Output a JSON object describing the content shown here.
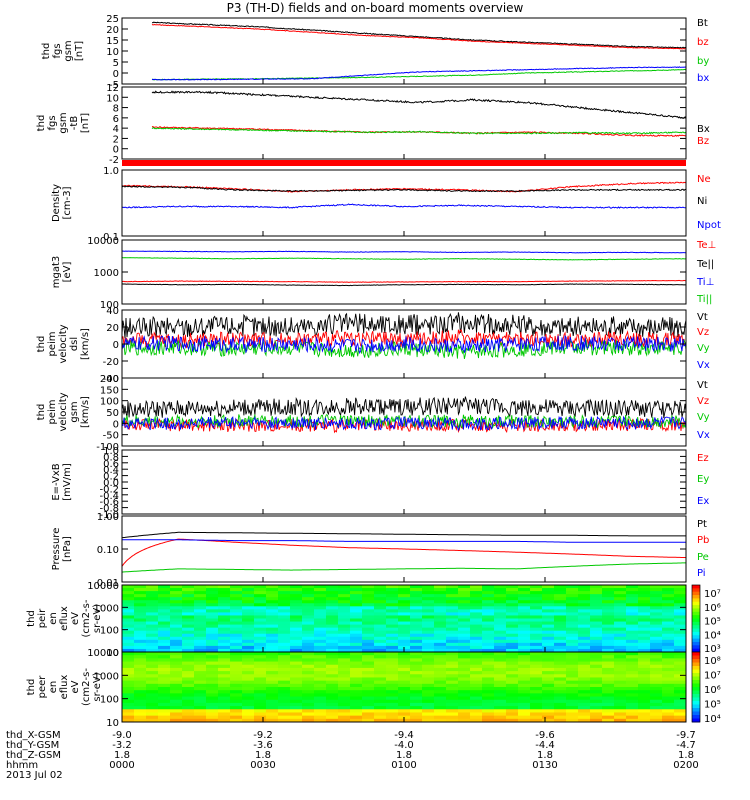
{
  "title": "P3 (TH-D) fields and on-board moments overview",
  "colors": {
    "black": "#000000",
    "red": "#ff0000",
    "green": "#00c800",
    "blue": "#0000ff"
  },
  "chart_data": [
    {
      "type": "line",
      "ylabel": [
        "thd",
        "fgs",
        "gsm",
        "[nT]"
      ],
      "ylim": [
        -5,
        25
      ],
      "yticks": [
        "25",
        "20",
        "15",
        "10",
        "5",
        "0",
        "-5"
      ],
      "series": [
        {
          "name": "Bt",
          "color": "black",
          "values": [
            23,
            22,
            21,
            19.5,
            18,
            16.5,
            15,
            14,
            13,
            12,
            11.5
          ]
        },
        {
          "name": "bz",
          "color": "red",
          "values": [
            22,
            21,
            20,
            18.5,
            17,
            16,
            14.5,
            13.5,
            12.5,
            11.5,
            11
          ]
        },
        {
          "name": "by",
          "color": "green",
          "values": [
            -3,
            -2.8,
            -2.6,
            -2.3,
            -2,
            -1.5,
            -1,
            0,
            0.5,
            1,
            1.5
          ]
        },
        {
          "name": "bx",
          "color": "blue",
          "values": [
            -3,
            -3,
            -2.8,
            -2.6,
            -1,
            0.5,
            1,
            1.5,
            2,
            2.5,
            2.7
          ]
        }
      ]
    },
    {
      "type": "line",
      "ylabel": [
        "thd",
        "fgs",
        "gsm",
        "-tB",
        "[nT]"
      ],
      "ylim": [
        -2,
        12
      ],
      "yticks": [
        "12",
        "10",
        "8",
        "6",
        "4",
        "2",
        "0",
        "-2"
      ],
      "series": [
        {
          "name": "Bx",
          "color": "black",
          "values": [
            11,
            11,
            10.5,
            10,
            9.5,
            9,
            9.5,
            9,
            8,
            7,
            6
          ]
        },
        {
          "name": "Bz",
          "color": "red",
          "values": [
            4.2,
            4,
            3.8,
            3.5,
            3.2,
            3.3,
            3,
            3.2,
            3,
            2.6,
            2.5
          ]
        },
        {
          "name": "",
          "color": "green",
          "values": [
            4,
            3.8,
            3.6,
            3.4,
            3.2,
            3.3,
            3,
            3,
            3.1,
            3,
            3.2
          ]
        }
      ]
    },
    {
      "type": "line",
      "scale": "log",
      "ylabel": [
        "Density",
        "[cm-3]"
      ],
      "ylim": [
        0.1,
        1.0
      ],
      "yticks": [
        "1.0",
        "0.1"
      ],
      "series": [
        {
          "name": "Ne",
          "color": "red",
          "values": [
            0.58,
            0.56,
            0.52,
            0.47,
            0.5,
            0.52,
            0.5,
            0.47,
            0.56,
            0.62,
            0.65
          ]
        },
        {
          "name": "Ni",
          "color": "black",
          "values": [
            0.56,
            0.55,
            0.5,
            0.48,
            0.49,
            0.5,
            0.48,
            0.48,
            0.5,
            0.5,
            0.5
          ]
        },
        {
          "name": "Npot",
          "color": "blue",
          "values": [
            0.27,
            0.28,
            0.28,
            0.27,
            0.3,
            0.28,
            0.29,
            0.28,
            0.27,
            0.27,
            0.27
          ]
        }
      ]
    },
    {
      "type": "line",
      "scale": "log",
      "ylabel": [
        "mgat3",
        "[eV]"
      ],
      "ylim": [
        100,
        10000
      ],
      "yticks": [
        "10000",
        "1000",
        "100"
      ],
      "series": [
        {
          "name": "Te⊥",
          "color": "red",
          "values": [
            500,
            520,
            510,
            500,
            480,
            490,
            500,
            500,
            520,
            530,
            540
          ]
        },
        {
          "name": "Te||",
          "color": "black",
          "values": [
            420,
            400,
            410,
            390,
            380,
            400,
            410,
            400,
            420,
            410,
            400
          ]
        },
        {
          "name": "Ti⊥",
          "color": "blue",
          "values": [
            4500,
            4400,
            4300,
            4400,
            4200,
            4300,
            4100,
            4200,
            4000,
            4100,
            4000
          ]
        },
        {
          "name": "Ti||",
          "color": "green",
          "values": [
            2800,
            2700,
            2600,
            2700,
            2600,
            2500,
            2600,
            2500,
            2400,
            2500,
            2600
          ]
        }
      ]
    },
    {
      "type": "line",
      "ylabel": [
        "thd",
        "peim",
        "velocity",
        "dsl",
        "[km/s]"
      ],
      "ylim": [
        -40,
        40
      ],
      "yticks": [
        "40",
        "20",
        "0",
        "-20",
        "-40"
      ],
      "series": [
        {
          "name": "Vt",
          "color": "black",
          "values": [
            18,
            20,
            22,
            20,
            24,
            22,
            25,
            22,
            20,
            21,
            20
          ]
        },
        {
          "name": "Vz",
          "color": "red",
          "values": [
            5,
            4,
            6,
            5,
            7,
            5,
            8,
            6,
            5,
            6,
            5
          ]
        },
        {
          "name": "Vy",
          "color": "green",
          "values": [
            -5,
            -4,
            -6,
            -5,
            -8,
            -6,
            -10,
            -6,
            -4,
            -5,
            -4
          ]
        },
        {
          "name": "Vx",
          "color": "blue",
          "values": [
            0,
            1,
            -1,
            0,
            -2,
            0,
            -3,
            0,
            1,
            0,
            0
          ]
        }
      ]
    },
    {
      "type": "line",
      "ylabel": [
        "thd",
        "peim",
        "velocity",
        "gsm",
        "[km/s]"
      ],
      "ylim": [
        -100,
        200
      ],
      "yticks": [
        "200",
        "150",
        "100",
        "50",
        "0",
        "-50",
        "-100"
      ],
      "series": [
        {
          "name": "Vt",
          "color": "black",
          "values": [
            60,
            65,
            70,
            70,
            75,
            72,
            80,
            70,
            65,
            65,
            60
          ]
        },
        {
          "name": "Vz",
          "color": "red",
          "values": [
            -5,
            -8,
            -10,
            -8,
            -12,
            -10,
            -8,
            -10,
            -8,
            -8,
            -6
          ]
        },
        {
          "name": "Vy",
          "color": "green",
          "values": [
            10,
            8,
            12,
            10,
            12,
            10,
            10,
            8,
            10,
            10,
            8
          ]
        },
        {
          "name": "Vx",
          "color": "blue",
          "values": [
            0,
            -2,
            2,
            0,
            -3,
            0,
            -2,
            0,
            2,
            0,
            0
          ]
        }
      ]
    },
    {
      "type": "line",
      "ylabel": [
        "E=-VxB",
        "[mV/m]"
      ],
      "ylim": [
        -1.0,
        1.0
      ],
      "yticks": [
        "1.0",
        "0.8",
        "0.6",
        "0.4",
        "0.2",
        "0.0",
        "-0.2",
        "-0.4",
        "-0.6",
        "-0.8",
        "-1.0"
      ],
      "series": [
        {
          "name": "Ez",
          "color": "red",
          "values": []
        },
        {
          "name": "Ey",
          "color": "green",
          "values": []
        },
        {
          "name": "Ex",
          "color": "blue",
          "values": []
        }
      ]
    },
    {
      "type": "line",
      "scale": "log",
      "ylabel": [
        "Pressure",
        "[nPa]"
      ],
      "ylim": [
        0.01,
        1.0
      ],
      "yticks": [
        "1.00",
        "0.10",
        "0.01"
      ],
      "series": [
        {
          "name": "Pt",
          "color": "black",
          "values": [
            0.22,
            0.32,
            0.31,
            0.3,
            0.29,
            0.28,
            0.27,
            0.26,
            0.26,
            0.25,
            0.25
          ]
        },
        {
          "name": "Pb",
          "color": "red",
          "values": [
            0.03,
            0.2,
            0.16,
            0.13,
            0.11,
            0.1,
            0.09,
            0.08,
            0.07,
            0.06,
            0.055
          ]
        },
        {
          "name": "Pe",
          "color": "green",
          "values": [
            0.02,
            0.025,
            0.024,
            0.023,
            0.024,
            0.025,
            0.026,
            0.025,
            0.03,
            0.035,
            0.038
          ]
        },
        {
          "name": "Pi",
          "color": "blue",
          "values": [
            0.19,
            0.19,
            0.18,
            0.18,
            0.17,
            0.17,
            0.17,
            0.17,
            0.16,
            0.16,
            0.16
          ]
        }
      ]
    },
    {
      "type": "heatmap",
      "ylabel": [
        "thd",
        "peir",
        "en",
        "eflux",
        "eV",
        "(cm2-s-",
        "sr-eV)"
      ],
      "ylim": [
        10,
        10000
      ],
      "yticks": [
        "10000",
        "1000",
        "100",
        "10"
      ],
      "colorbar_ticks": [
        "10⁷",
        "10⁶",
        "10⁵",
        "10⁴",
        "10³"
      ],
      "zlim": [
        1000,
        10000000
      ]
    },
    {
      "type": "heatmap",
      "ylabel": [
        "thd",
        "peer",
        "en",
        "eflux",
        "eV",
        "(cm2-s-",
        "sr-eV)"
      ],
      "ylim": [
        10,
        10000
      ],
      "yticks": [
        "10000",
        "1000",
        "100",
        "10"
      ],
      "colorbar_ticks": [
        "10⁸",
        "10⁷",
        "10⁶",
        "10⁵",
        "10⁴"
      ],
      "zlim": [
        10000,
        100000000
      ]
    }
  ],
  "xaxis": {
    "row_labels": [
      "thd_X-GSM",
      "thd_Y-GSM",
      "thd_Z-GSM",
      "hhmm",
      "2013 Jul 02"
    ],
    "ticks": [
      {
        "x": "-9.0",
        "y": "-3.2",
        "z": "1.8",
        "t": "0000"
      },
      {
        "x": "-9.2",
        "y": "-3.6",
        "z": "1.8",
        "t": "0030"
      },
      {
        "x": "-9.4",
        "y": "-4.0",
        "z": "1.8",
        "t": "0100"
      },
      {
        "x": "-9.6",
        "y": "-4.4",
        "z": "1.8",
        "t": "0130"
      },
      {
        "x": "-9.7",
        "y": "-4.7",
        "z": "1.8",
        "t": "0200"
      }
    ]
  }
}
